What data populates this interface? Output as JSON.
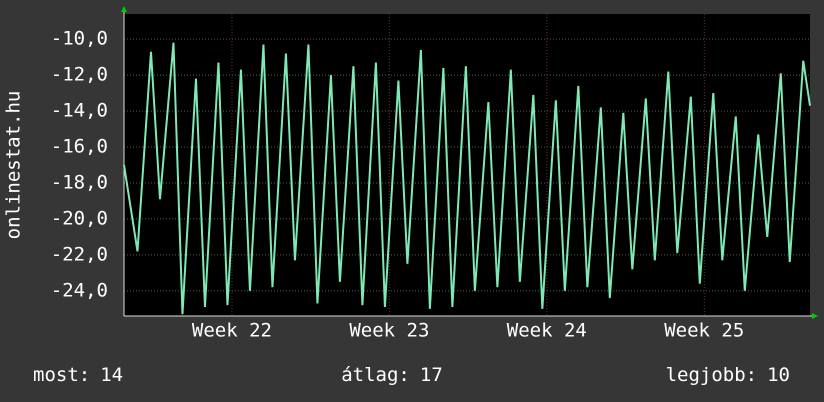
{
  "chart_data": {
    "type": "line",
    "y_label": "onlinestat.hu",
    "x": [
      0,
      0.6,
      1.2,
      1.6,
      2.2,
      2.6,
      3.2,
      3.6,
      4.2,
      4.6,
      5.2,
      5.6,
      6.2,
      6.6,
      7.2,
      7.6,
      8.2,
      8.6,
      9.2,
      9.6,
      10.2,
      10.6,
      11.2,
      11.6,
      12.2,
      12.6,
      13.2,
      13.6,
      14.2,
      14.6,
      15.2,
      15.6,
      16.2,
      16.6,
      17.2,
      17.6,
      18.2,
      18.6,
      19.2,
      19.6,
      20.2,
      20.6,
      21.2,
      21.6,
      22.2,
      22.6,
      23.2,
      23.6,
      24.2,
      24.6,
      25.2,
      25.6,
      26.2,
      26.6,
      27.2,
      27.6,
      28.2,
      28.6,
      29.2,
      29.6,
      30.2,
      30.5
    ],
    "series": [
      {
        "name": "onlinestat.hu",
        "color": "#7fe8b4",
        "values": [
          -17,
          -21.8,
          -10.7,
          -18.9,
          -10.2,
          -25.3,
          -12.2,
          -24.9,
          -11.3,
          -24.8,
          -11.7,
          -24.0,
          -10.3,
          -23.8,
          -10.8,
          -22.3,
          -10.3,
          -24.7,
          -12.0,
          -23.5,
          -11.5,
          -24.8,
          -11.3,
          -24.9,
          -12.3,
          -22.5,
          -10.6,
          -25.0,
          -11.6,
          -24.9,
          -11.5,
          -24.0,
          -13.5,
          -23.8,
          -11.7,
          -23.5,
          -13.1,
          -25.0,
          -13.4,
          -24.0,
          -12.6,
          -23.8,
          -13.8,
          -24.4,
          -14.1,
          -22.8,
          -13.3,
          -22.3,
          -11.8,
          -21.9,
          -13.2,
          -23.6,
          -13.0,
          -22.3,
          -14.3,
          -24.0,
          -15.3,
          -21.0,
          -11.9,
          -22.4,
          -11.2,
          -13.7
        ]
      }
    ],
    "xlim": [
      0,
      30.5
    ],
    "ylim": [
      -25.4,
      -8.6
    ],
    "yticks": [
      {
        "value": -10,
        "label": "-10,0"
      },
      {
        "value": -12,
        "label": "-12,0"
      },
      {
        "value": -14,
        "label": "-14,0"
      },
      {
        "value": -16,
        "label": "-16,0"
      },
      {
        "value": -18,
        "label": "-18,0"
      },
      {
        "value": -20,
        "label": "-20,0"
      },
      {
        "value": -22,
        "label": "-22,0"
      },
      {
        "value": -24,
        "label": "-24,0"
      }
    ],
    "xticks": [
      {
        "value": 4.8,
        "label": "Week 22"
      },
      {
        "value": 11.8,
        "label": "Week 23"
      },
      {
        "value": 18.8,
        "label": "Week 24"
      },
      {
        "value": 25.8,
        "label": "Week 25"
      }
    ],
    "grid": true,
    "stats": [
      {
        "label": "most:",
        "value": 14
      },
      {
        "label": "átlag:",
        "value": 17
      },
      {
        "label": "legjobb:",
        "value": 10
      }
    ]
  }
}
